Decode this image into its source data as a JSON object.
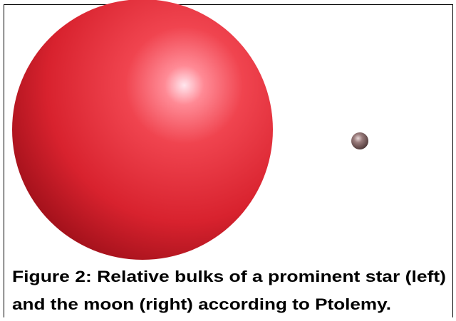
{
  "figure": {
    "caption_lines": [
      "Figure 2: Relative bulks of a prominent star (left)",
      "and the moon (right) according to Ptolemy."
    ]
  }
}
